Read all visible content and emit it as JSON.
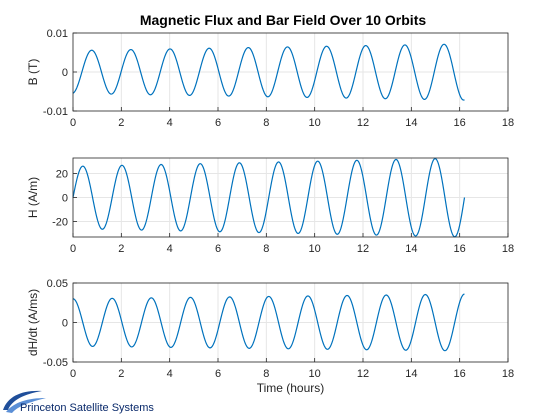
{
  "title": "Magnetic Flux and Bar Field Over 10 Orbits",
  "branding": {
    "logo_text": "Princeton Satellite Systems",
    "logo_color": "#1f4e9a"
  },
  "colors": {
    "line": "#0072BD",
    "grid": "#e6e6e6",
    "axes": "#262626"
  },
  "chart_data": [
    {
      "type": "line",
      "title": "Magnetic Flux and Bar Field Over 10 Orbits",
      "xlabel": "",
      "ylabel": "B (T)",
      "xlim": [
        0,
        18
      ],
      "ylim": [
        -0.01,
        0.01
      ],
      "xticks": [
        0,
        2,
        4,
        6,
        8,
        10,
        12,
        14,
        16,
        18
      ],
      "xtick_labels": [
        "0",
        "2",
        "4",
        "6",
        "8",
        "10",
        "12",
        "14",
        "16",
        "18"
      ],
      "yticks": [
        -0.01,
        0,
        0.01
      ],
      "ytick_labels": [
        "-0.01",
        "0",
        "0.01"
      ],
      "grid": true,
      "series": [
        {
          "x_range": [
            0,
            16.2
          ],
          "shape": "sinusoid",
          "period": 1.62,
          "phase_start_value": -0.0055,
          "amplitude_start": 0.0055,
          "amplitude_end": 0.0072,
          "end_value": -0.0025
        }
      ]
    },
    {
      "type": "line",
      "title": "",
      "xlabel": "",
      "ylabel": "H (A/m)",
      "xlim": [
        0,
        18
      ],
      "ylim": [
        -33,
        33
      ],
      "xticks": [
        0,
        2,
        4,
        6,
        8,
        10,
        12,
        14,
        16,
        18
      ],
      "xtick_labels": [
        "0",
        "2",
        "4",
        "6",
        "8",
        "10",
        "12",
        "14",
        "16",
        "18"
      ],
      "yticks": [
        -20,
        0,
        20
      ],
      "ytick_labels": [
        "-20",
        "0",
        "20"
      ],
      "grid": true,
      "series": [
        {
          "x_range": [
            0,
            16.2
          ],
          "shape": "sinusoid",
          "period": 1.62,
          "phase_start_value": 0,
          "amplitude_start": 26,
          "amplitude_end": 33,
          "end_value": 0
        }
      ]
    },
    {
      "type": "line",
      "title": "",
      "xlabel": "Time (hours)",
      "ylabel": "dH/dt (A/ms)",
      "xlim": [
        0,
        18
      ],
      "ylim": [
        -0.05,
        0.05
      ],
      "xticks": [
        0,
        2,
        4,
        6,
        8,
        10,
        12,
        14,
        16,
        18
      ],
      "xtick_labels": [
        "0",
        "2",
        "4",
        "6",
        "8",
        "10",
        "12",
        "14",
        "16",
        "18"
      ],
      "yticks": [
        -0.05,
        0,
        0.05
      ],
      "ytick_labels": [
        "-0.05",
        "0",
        "0.05"
      ],
      "grid": true,
      "series": [
        {
          "x_range": [
            0,
            16.2
          ],
          "shape": "cosinusoid",
          "period": 1.62,
          "phase_start_value": 0.03,
          "amplitude_start": 0.03,
          "amplitude_end": 0.036,
          "end_value": 0.035
        }
      ]
    }
  ]
}
